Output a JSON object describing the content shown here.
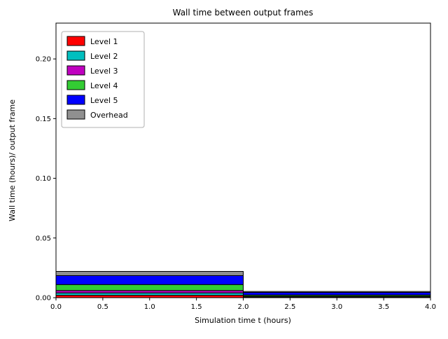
{
  "chart_data": {
    "type": "bar",
    "stacked": true,
    "title": "Wall time between output frames",
    "xlabel": "Simulation time t (hours)",
    "ylabel": "Wall time (hours)/ output frame",
    "xlim": [
      0.0,
      4.0
    ],
    "ylim": [
      0.0,
      0.23
    ],
    "xticks": [
      0.0,
      0.5,
      1.0,
      1.5,
      2.0,
      2.5,
      3.0,
      3.5,
      4.0
    ],
    "xtick_labels": [
      "0.0",
      "0.5",
      "1.0",
      "1.5",
      "2.0",
      "2.5",
      "3.0",
      "3.5",
      "4.0"
    ],
    "yticks": [
      0.0,
      0.05,
      0.1,
      0.15,
      0.2
    ],
    "ytick_labels": [
      "0.00",
      "0.05",
      "0.10",
      "0.15",
      "0.20"
    ],
    "grid": false,
    "bar_edge_color": "#000000",
    "bars": [
      {
        "x_start": 0.0,
        "x_end": 2.0
      },
      {
        "x_start": 2.0,
        "x_end": 4.0
      }
    ],
    "series": [
      {
        "name": "Level 1",
        "color": "#ff0000",
        "values": [
          0.002,
          0.0004
        ]
      },
      {
        "name": "Level 2",
        "color": "#00bfbf",
        "values": [
          0.002,
          0.0004
        ]
      },
      {
        "name": "Level 3",
        "color": "#c000c0",
        "values": [
          0.002,
          0.0004
        ]
      },
      {
        "name": "Level 4",
        "color": "#33cc33",
        "values": [
          0.005,
          0.001
        ]
      },
      {
        "name": "Level 5",
        "color": "#0000ff",
        "values": [
          0.0075,
          0.0022
        ]
      },
      {
        "name": "Overhead",
        "color": "#909090",
        "values": [
          0.0035,
          0.0008
        ]
      }
    ],
    "legend": {
      "position": "upper left",
      "entries": [
        "Level 1",
        "Level 2",
        "Level 3",
        "Level 4",
        "Level 5",
        "Overhead"
      ]
    }
  }
}
